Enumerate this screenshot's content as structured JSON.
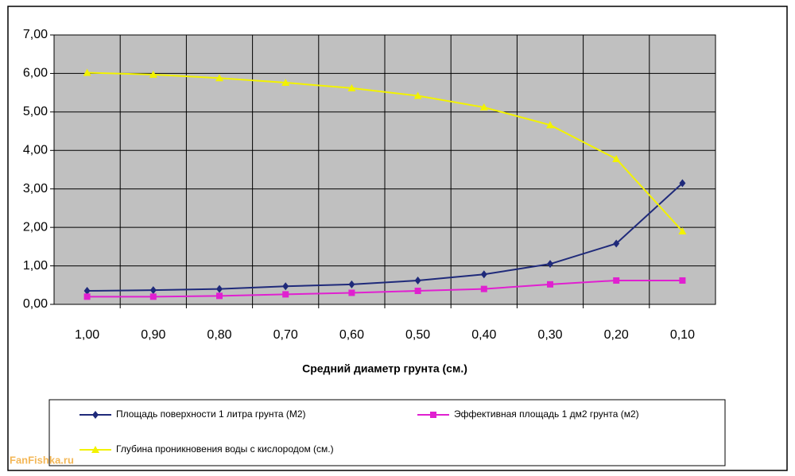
{
  "chart_data": {
    "type": "line",
    "x_label": "Средний диаметр грунта (см.)",
    "categories": [
      "1,00",
      "0,90",
      "0,80",
      "0,70",
      "0,60",
      "0,50",
      "0,40",
      "0,30",
      "0,20",
      "0,10"
    ],
    "series": [
      {
        "name": "Площадь поверхности 1 литра грунта (М2)",
        "color": "#1f2a7a",
        "marker": "diamond",
        "values": [
          0.35,
          0.37,
          0.4,
          0.47,
          0.52,
          0.62,
          0.78,
          1.05,
          1.58,
          3.15
        ]
      },
      {
        "name": "Эффективная площадь 1 дм2 грунта (м2)",
        "color": "#e020d0",
        "marker": "square",
        "values": [
          0.2,
          0.2,
          0.22,
          0.26,
          0.3,
          0.35,
          0.4,
          0.52,
          0.62,
          0.62
        ]
      },
      {
        "name": "Глубина проникновения воды с кислородом (см.)",
        "color": "#f2f200",
        "marker": "triangle",
        "values": [
          6.02,
          5.97,
          5.88,
          5.76,
          5.62,
          5.42,
          5.12,
          4.66,
          3.78,
          1.9
        ]
      }
    ],
    "ylim": [
      0,
      7
    ],
    "yticks": [
      {
        "value": 0,
        "label": "0,00"
      },
      {
        "value": 1,
        "label": "1,00"
      },
      {
        "value": 2,
        "label": "2,00"
      },
      {
        "value": 3,
        "label": "3,00"
      },
      {
        "value": 4,
        "label": "4,00"
      },
      {
        "value": 5,
        "label": "5,00"
      },
      {
        "value": 6,
        "label": "6,00"
      },
      {
        "value": 7,
        "label": "7,00"
      }
    ],
    "grid": true,
    "plot_background": "#c0c0c0",
    "watermark": "FanFishka.ru"
  }
}
